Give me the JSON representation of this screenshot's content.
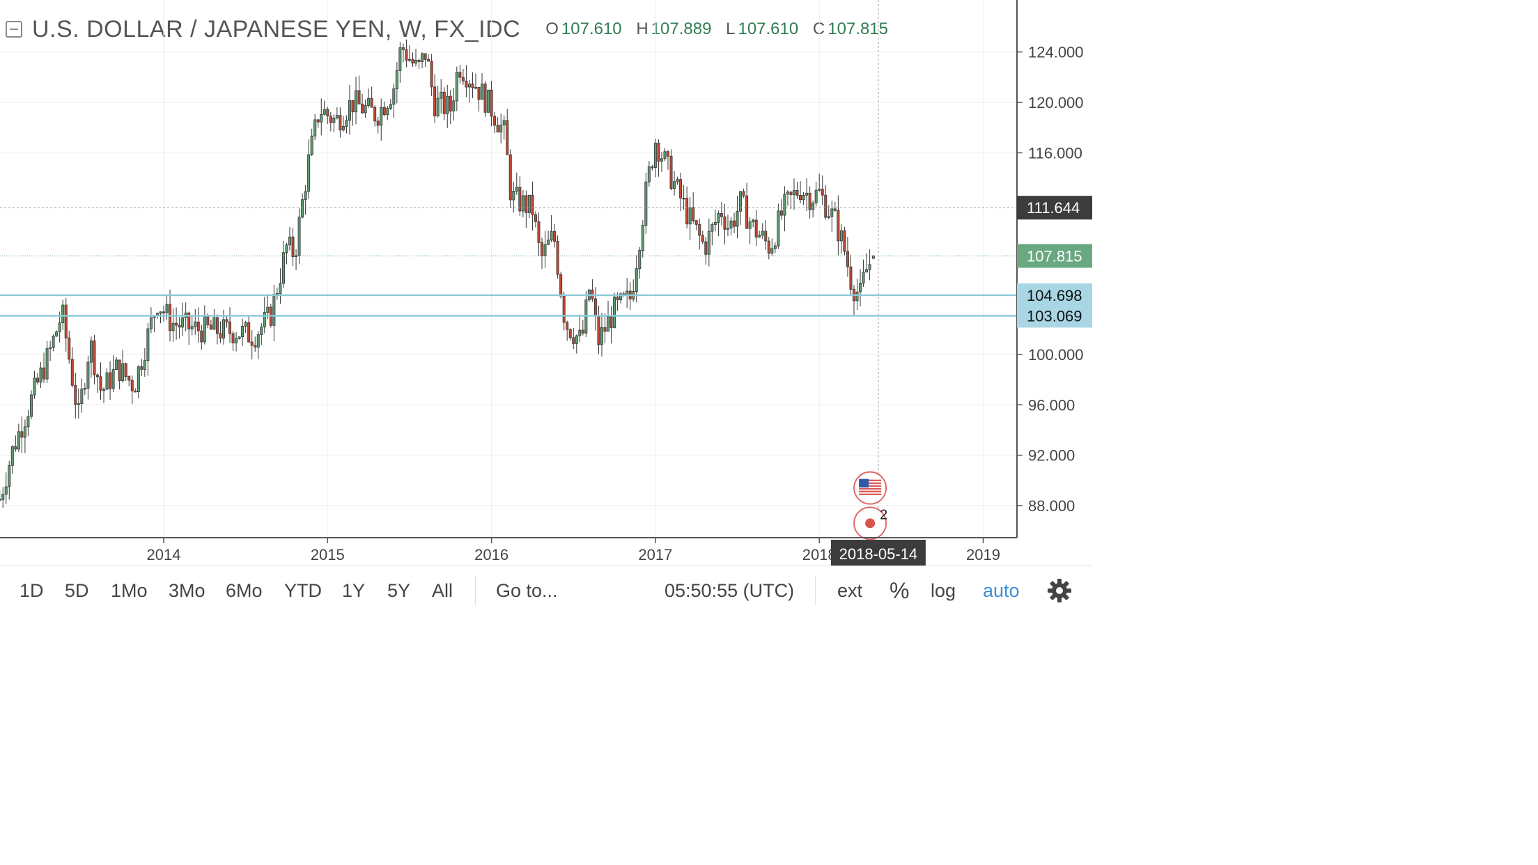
{
  "header": {
    "collapse_icon": "collapse-minus-icon",
    "symbol_title": "U.S. DOLLAR / JAPANESE YEN, W, FX_IDC",
    "ohlc": [
      {
        "label": "O",
        "value": "107.610"
      },
      {
        "label": "H",
        "value": "107.889"
      },
      {
        "label": "L",
        "value": "107.610"
      },
      {
        "label": "C",
        "value": "107.815"
      }
    ]
  },
  "chart_data": {
    "type": "candlestick",
    "title": "U.S. DOLLAR / JAPANESE YEN, W, FX_IDC",
    "ylim": [
      85.0,
      127.0
    ],
    "y_ticks": [
      "124.000",
      "120.000",
      "116.000",
      "111.644",
      "107.815",
      "104.698",
      "103.069",
      "100.000",
      "96.000",
      "92.000",
      "88.000"
    ],
    "y_tick_values": [
      124,
      120,
      116,
      100,
      96,
      92,
      88
    ],
    "x_ticks": [
      "2014",
      "2015",
      "2016",
      "2017",
      "2018",
      "2019"
    ],
    "x_tick_years": [
      2014,
      2015,
      2016,
      2017,
      2018,
      2019
    ],
    "xlim_years": [
      2013.0,
      2019.2
    ],
    "anchors": [
      [
        2013.0,
        88.5
      ],
      [
        2013.08,
        92.5
      ],
      [
        2013.18,
        96.0
      ],
      [
        2013.3,
        100.0
      ],
      [
        2013.38,
        103.3
      ],
      [
        2013.48,
        95.0
      ],
      [
        2013.55,
        101.0
      ],
      [
        2013.62,
        97.0
      ],
      [
        2013.72,
        99.0
      ],
      [
        2013.82,
        97.5
      ],
      [
        2013.96,
        104.2
      ],
      [
        2014.05,
        102.5
      ],
      [
        2014.2,
        102.0
      ],
      [
        2014.45,
        101.8
      ],
      [
        2014.55,
        101.5
      ],
      [
        2014.65,
        103.0
      ],
      [
        2014.75,
        108.5
      ],
      [
        2014.8,
        108.0
      ],
      [
        2014.88,
        115.0
      ],
      [
        2014.95,
        119.5
      ],
      [
        2015.05,
        118.5
      ],
      [
        2015.15,
        120.0
      ],
      [
        2015.3,
        119.0
      ],
      [
        2015.4,
        121.0
      ],
      [
        2015.45,
        124.5
      ],
      [
        2015.55,
        122.5
      ],
      [
        2015.6,
        124.0
      ],
      [
        2015.65,
        120.0
      ],
      [
        2015.75,
        119.5
      ],
      [
        2015.8,
        123.0
      ],
      [
        2015.9,
        121.5
      ],
      [
        2016.0,
        119.5
      ],
      [
        2016.08,
        117.5
      ],
      [
        2016.12,
        112.5
      ],
      [
        2016.25,
        111.5
      ],
      [
        2016.3,
        107.5
      ],
      [
        2016.38,
        109.5
      ],
      [
        2016.45,
        102.5
      ],
      [
        2016.55,
        101.0
      ],
      [
        2016.6,
        105.5
      ],
      [
        2016.65,
        101.0
      ],
      [
        2016.75,
        103.5
      ],
      [
        2016.85,
        104.5
      ],
      [
        2016.95,
        113.5
      ],
      [
        2017.0,
        117.0
      ],
      [
        2017.1,
        114.0
      ],
      [
        2017.2,
        111.0
      ],
      [
        2017.3,
        108.5
      ],
      [
        2017.4,
        111.5
      ],
      [
        2017.45,
        110.0
      ],
      [
        2017.52,
        112.0
      ],
      [
        2017.6,
        110.0
      ],
      [
        2017.7,
        108.5
      ],
      [
        2017.78,
        111.5
      ],
      [
        2017.88,
        113.2
      ],
      [
        2017.95,
        112.5
      ],
      [
        2018.0,
        112.8
      ],
      [
        2018.1,
        110.5
      ],
      [
        2018.15,
        108.5
      ],
      [
        2018.2,
        105.5
      ],
      [
        2018.25,
        104.7
      ],
      [
        2018.28,
        106.5
      ],
      [
        2018.33,
        107.8
      ]
    ],
    "last_bar": {
      "open": 107.61,
      "high": 107.889,
      "low": 107.61,
      "close": 107.815
    },
    "horizontal_lines": [
      104.698,
      103.069
    ],
    "dotted_line": 111.644,
    "price_labels": [
      {
        "label": "111.644",
        "value": 111.644,
        "color": "#3c3c3c"
      },
      {
        "label": "107.815",
        "value": 107.815,
        "color": "#6aa882"
      },
      {
        "label": "104.698",
        "value": 104.698,
        "color": "#a9d6e5"
      },
      {
        "label": "103.069",
        "value": 103.069,
        "color": "#a9d6e5"
      }
    ],
    "crosshair_date": "2018-05-14",
    "crosshair_year": 2018.36,
    "colors": {
      "up": "#5c9d72",
      "down": "#c24a34",
      "line": "#8ccbd9",
      "grid": "#eeeeee"
    },
    "events": [
      {
        "icon": "us-flag-icon",
        "year": 2018.31,
        "value": 89.4,
        "count": ""
      },
      {
        "icon": "japan-flag-icon",
        "year": 2018.31,
        "value": 86.6,
        "count": "2"
      }
    ]
  },
  "toolbar": {
    "ranges": [
      "1D",
      "5D",
      "1Mo",
      "3Mo",
      "6Mo",
      "YTD",
      "1Y",
      "5Y",
      "All"
    ],
    "goto": "Go to...",
    "time": "05:50:55 (UTC)",
    "ext": "ext",
    "percent": "%",
    "log": "log",
    "auto": "auto",
    "settings_icon": "gear-icon"
  }
}
